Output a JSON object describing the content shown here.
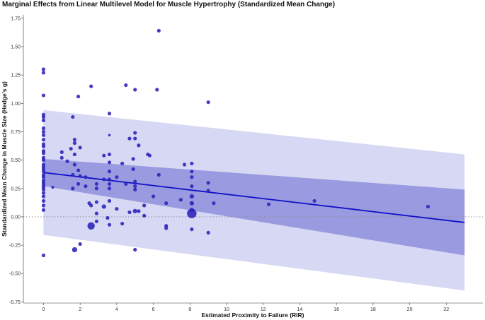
{
  "chart_data": {
    "type": "scatter",
    "title": "Marginal Effects from Linear Multilevel Model for Muscle Hypertrophy (Standardized Mean Change)",
    "xlabel": "Estimated Proximity to Failure (RIR)",
    "ylabel": "Standardized Mean Change in Muscle Size (Hedge's g)",
    "xlim": [
      -1.1,
      24.0
    ],
    "ylim": [
      -0.76,
      1.78
    ],
    "x_ticks": [
      0,
      2,
      4,
      6,
      8,
      10,
      12,
      14,
      16,
      18,
      20,
      22
    ],
    "y_ticks": [
      -0.75,
      -0.5,
      -0.25,
      0.0,
      0.25,
      0.5,
      0.75,
      1.0,
      1.25,
      1.5,
      1.75
    ],
    "y_tick_labels": [
      "-0.75",
      "-0.50",
      "-0.25",
      "0.00",
      "0.25",
      "0.50",
      "0.75",
      "1.00",
      "1.25",
      "1.50",
      "1.75"
    ],
    "grid": false,
    "reference_line": {
      "y": 0,
      "style": "dotted"
    },
    "colors": {
      "points": "#2b22b8",
      "fit_line": "#1010c8",
      "confidence_band": "#9a9ae0",
      "prediction_band": "#d6d8f4",
      "reference_line": "#888888"
    },
    "fit_line": {
      "x": [
        0,
        23
      ],
      "y": [
        0.39,
        -0.05
      ]
    },
    "confidence_band": {
      "x": [
        0,
        23
      ],
      "upper": [
        0.51,
        0.24
      ],
      "lower": [
        0.27,
        -0.34
      ]
    },
    "prediction_band": {
      "x": [
        0,
        23
      ],
      "upper": [
        0.94,
        0.55
      ],
      "lower": [
        -0.16,
        -0.65
      ]
    },
    "points": [
      {
        "x": 0,
        "y": 1.3,
        "size": 1
      },
      {
        "x": 0,
        "y": 1.27,
        "size": 1
      },
      {
        "x": 0,
        "y": 1.07,
        "size": 1
      },
      {
        "x": 0,
        "y": 0.9,
        "size": 1
      },
      {
        "x": 0,
        "y": 0.88,
        "size": 1
      },
      {
        "x": 0,
        "y": 0.85,
        "size": 1
      },
      {
        "x": 0,
        "y": 0.78,
        "size": 1
      },
      {
        "x": 0,
        "y": 0.75,
        "size": 1
      },
      {
        "x": 0,
        "y": 0.72,
        "size": 1
      },
      {
        "x": 0,
        "y": 0.68,
        "size": 1
      },
      {
        "x": 0,
        "y": 0.64,
        "size": 1
      },
      {
        "x": 0,
        "y": 0.62,
        "size": 1
      },
      {
        "x": 0,
        "y": 0.58,
        "size": 1
      },
      {
        "x": 0,
        "y": 0.56,
        "size": 1
      },
      {
        "x": 0,
        "y": 0.52,
        "size": 1
      },
      {
        "x": 0,
        "y": 0.5,
        "size": 1
      },
      {
        "x": 0,
        "y": 0.46,
        "size": 1
      },
      {
        "x": 0,
        "y": 0.44,
        "size": 1
      },
      {
        "x": 0,
        "y": 0.42,
        "size": 1
      },
      {
        "x": 0,
        "y": 0.4,
        "size": 1
      },
      {
        "x": 0,
        "y": 0.37,
        "size": 1
      },
      {
        "x": 0,
        "y": 0.35,
        "size": 1
      },
      {
        "x": 0,
        "y": 0.32,
        "size": 1
      },
      {
        "x": 0,
        "y": 0.3,
        "size": 1
      },
      {
        "x": 0,
        "y": 0.28,
        "size": 1
      },
      {
        "x": 0,
        "y": 0.26,
        "size": 1
      },
      {
        "x": 0,
        "y": 0.24,
        "size": 1
      },
      {
        "x": 0,
        "y": 0.21,
        "size": 1
      },
      {
        "x": 0,
        "y": 0.18,
        "size": 1
      },
      {
        "x": 0,
        "y": 0.14,
        "size": 1
      },
      {
        "x": 0,
        "y": 0.1,
        "size": 1
      },
      {
        "x": 0,
        "y": 0.06,
        "size": 1
      },
      {
        "x": 0,
        "y": -0.34,
        "size": 1
      },
      {
        "x": 0.5,
        "y": 0.26,
        "size": 0.8
      },
      {
        "x": 1.0,
        "y": 0.57,
        "size": 1
      },
      {
        "x": 1.0,
        "y": 0.52,
        "size": 1
      },
      {
        "x": 1.3,
        "y": 0.49,
        "size": 1
      },
      {
        "x": 1.5,
        "y": 0.6,
        "size": 1
      },
      {
        "x": 1.6,
        "y": 0.88,
        "size": 1
      },
      {
        "x": 1.6,
        "y": 0.37,
        "size": 1
      },
      {
        "x": 1.6,
        "y": 0.25,
        "size": 1
      },
      {
        "x": 1.7,
        "y": 0.68,
        "size": 1
      },
      {
        "x": 1.7,
        "y": 0.65,
        "size": 1
      },
      {
        "x": 1.7,
        "y": 0.55,
        "size": 1
      },
      {
        "x": 1.7,
        "y": 0.46,
        "size": 1
      },
      {
        "x": 1.7,
        "y": -0.29,
        "size": 1.4
      },
      {
        "x": 1.9,
        "y": 1.06,
        "size": 1
      },
      {
        "x": 1.9,
        "y": 0.41,
        "size": 1
      },
      {
        "x": 1.9,
        "y": 0.29,
        "size": 1
      },
      {
        "x": 2.0,
        "y": 0.61,
        "size": 1
      },
      {
        "x": 2.0,
        "y": 0.36,
        "size": 1
      },
      {
        "x": 2.0,
        "y": -0.24,
        "size": 1
      },
      {
        "x": 2.3,
        "y": 0.35,
        "size": 1
      },
      {
        "x": 2.3,
        "y": 0.27,
        "size": 1
      },
      {
        "x": 2.5,
        "y": 0.12,
        "size": 1
      },
      {
        "x": 2.6,
        "y": 1.15,
        "size": 1
      },
      {
        "x": 2.6,
        "y": 0.1,
        "size": 1
      },
      {
        "x": 2.6,
        "y": -0.08,
        "size": 2
      },
      {
        "x": 2.9,
        "y": 0.29,
        "size": 1
      },
      {
        "x": 2.9,
        "y": 0.25,
        "size": 1
      },
      {
        "x": 2.9,
        "y": 0.13,
        "size": 1
      },
      {
        "x": 2.9,
        "y": 0.03,
        "size": 1
      },
      {
        "x": 2.9,
        "y": -0.04,
        "size": 1
      },
      {
        "x": 3.3,
        "y": 0.54,
        "size": 1
      },
      {
        "x": 3.3,
        "y": 0.33,
        "size": 1
      },
      {
        "x": 3.3,
        "y": 0.09,
        "size": 1.2
      },
      {
        "x": 3.5,
        "y": -0.01,
        "size": 1
      },
      {
        "x": 3.6,
        "y": 0.91,
        "size": 1
      },
      {
        "x": 3.6,
        "y": 0.72,
        "size": 0.7
      },
      {
        "x": 3.6,
        "y": 0.55,
        "size": 1
      },
      {
        "x": 3.6,
        "y": 0.48,
        "size": 1
      },
      {
        "x": 3.6,
        "y": 0.4,
        "size": 1
      },
      {
        "x": 3.6,
        "y": 0.33,
        "size": 1
      },
      {
        "x": 3.6,
        "y": 0.29,
        "size": 1
      },
      {
        "x": 3.6,
        "y": 0.25,
        "size": 1
      },
      {
        "x": 3.6,
        "y": 0.14,
        "size": 1
      },
      {
        "x": 3.6,
        "y": -0.07,
        "size": 1
      },
      {
        "x": 4.0,
        "y": 0.35,
        "size": 1
      },
      {
        "x": 4.0,
        "y": 0.07,
        "size": 1
      },
      {
        "x": 4.3,
        "y": 0.47,
        "size": 1
      },
      {
        "x": 4.3,
        "y": -0.06,
        "size": 1
      },
      {
        "x": 4.5,
        "y": 1.16,
        "size": 1
      },
      {
        "x": 4.5,
        "y": 0.29,
        "size": 1
      },
      {
        "x": 4.7,
        "y": 0.69,
        "size": 1
      },
      {
        "x": 4.7,
        "y": 0.04,
        "size": 1
      },
      {
        "x": 4.9,
        "y": 0.51,
        "size": 1
      },
      {
        "x": 4.9,
        "y": 0.42,
        "size": 1
      },
      {
        "x": 5.0,
        "y": 1.12,
        "size": 1
      },
      {
        "x": 5.0,
        "y": 0.74,
        "size": 1
      },
      {
        "x": 5.0,
        "y": 0.69,
        "size": 1
      },
      {
        "x": 5.0,
        "y": 0.31,
        "size": 1
      },
      {
        "x": 5.0,
        "y": 0.27,
        "size": 1
      },
      {
        "x": 5.0,
        "y": 0.24,
        "size": 1
      },
      {
        "x": 5.0,
        "y": 0.05,
        "size": 1.2
      },
      {
        "x": 5.0,
        "y": -0.29,
        "size": 1
      },
      {
        "x": 5.2,
        "y": 0.63,
        "size": 1
      },
      {
        "x": 5.2,
        "y": 0.05,
        "size": 1
      },
      {
        "x": 5.5,
        "y": 0.1,
        "size": 1
      },
      {
        "x": 5.5,
        "y": 0.01,
        "size": 1
      },
      {
        "x": 5.7,
        "y": 0.55,
        "size": 1
      },
      {
        "x": 5.8,
        "y": 0.54,
        "size": 1
      },
      {
        "x": 6.0,
        "y": 0.18,
        "size": 1
      },
      {
        "x": 6.2,
        "y": 1.12,
        "size": 1
      },
      {
        "x": 6.3,
        "y": 1.64,
        "size": 1
      },
      {
        "x": 6.3,
        "y": 0.37,
        "size": 1
      },
      {
        "x": 6.7,
        "y": -0.08,
        "size": 1
      },
      {
        "x": 6.7,
        "y": -0.1,
        "size": 1
      },
      {
        "x": 6.7,
        "y": 0.12,
        "size": 1
      },
      {
        "x": 7.5,
        "y": 0.15,
        "size": 1
      },
      {
        "x": 7.7,
        "y": 0.46,
        "size": 1
      },
      {
        "x": 8.1,
        "y": 0.47,
        "size": 1
      },
      {
        "x": 8.1,
        "y": 0.4,
        "size": 1
      },
      {
        "x": 8.1,
        "y": 0.35,
        "size": 1
      },
      {
        "x": 8.1,
        "y": 0.27,
        "size": 1
      },
      {
        "x": 8.1,
        "y": 0.18,
        "size": 1.2
      },
      {
        "x": 8.1,
        "y": 0.12,
        "size": 1.2
      },
      {
        "x": 8.1,
        "y": 0.06,
        "size": 1.2
      },
      {
        "x": 8.1,
        "y": 0.03,
        "size": 2.6
      },
      {
        "x": 8.1,
        "y": -0.11,
        "size": 1
      },
      {
        "x": 9.0,
        "y": 1.01,
        "size": 1
      },
      {
        "x": 9.0,
        "y": 0.3,
        "size": 1
      },
      {
        "x": 9.0,
        "y": 0.23,
        "size": 1
      },
      {
        "x": 9.0,
        "y": -0.14,
        "size": 1
      },
      {
        "x": 9.3,
        "y": 0.12,
        "size": 1
      },
      {
        "x": 12.3,
        "y": 0.11,
        "size": 1
      },
      {
        "x": 14.8,
        "y": 0.14,
        "size": 1
      },
      {
        "x": 21.0,
        "y": 0.09,
        "size": 1
      }
    ]
  }
}
